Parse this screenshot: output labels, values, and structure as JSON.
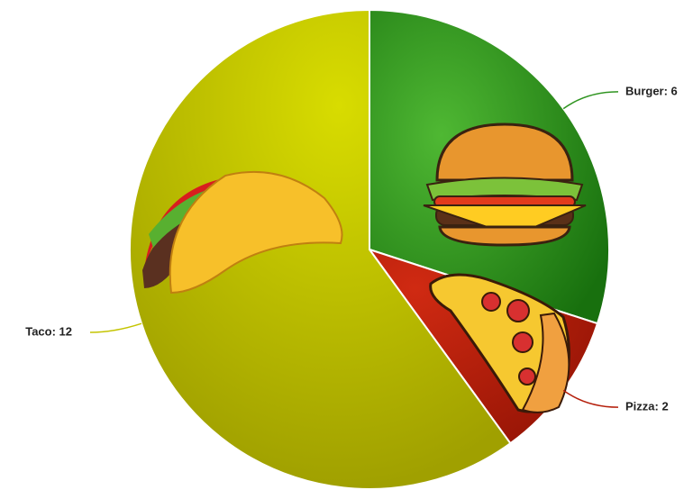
{
  "chart_data": {
    "type": "pie",
    "categories": [
      "Burger",
      "Pizza",
      "Taco"
    ],
    "values": [
      6,
      2,
      12
    ],
    "value_labels": [
      "Burger: 6",
      "Pizza: 2",
      "Taco: 12"
    ],
    "colors": [
      "#2f9420",
      "#b5200c",
      "#c4c400"
    ]
  }
}
